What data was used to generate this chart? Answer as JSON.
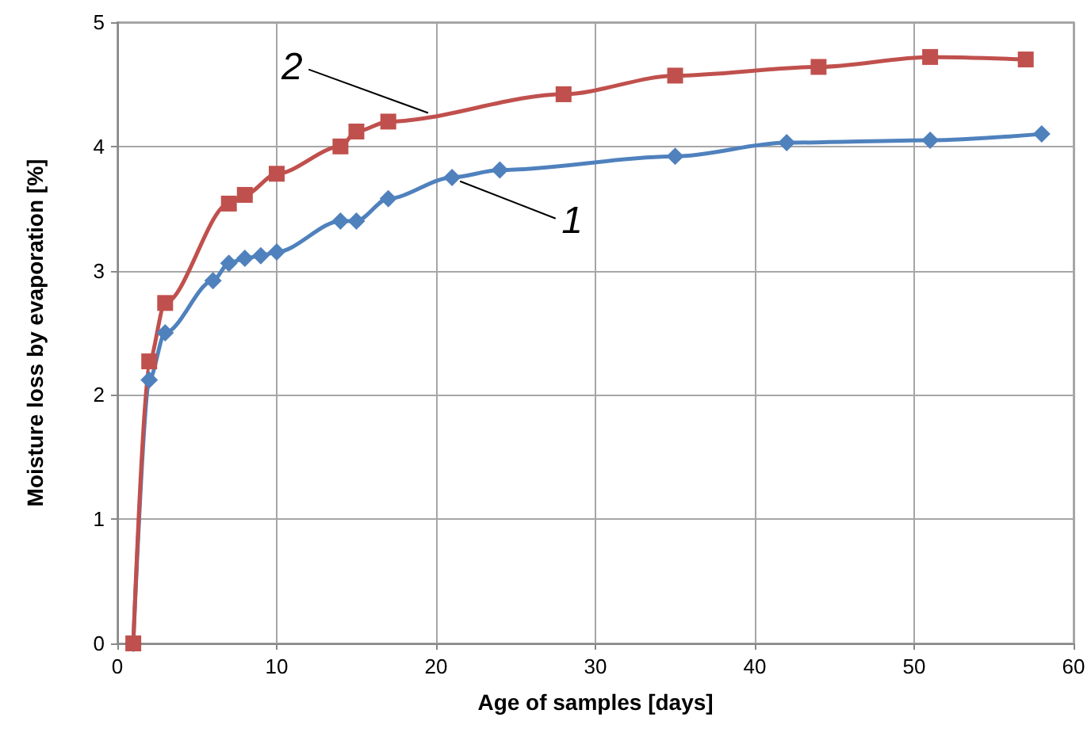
{
  "chart_data": {
    "type": "line",
    "xlabel": "Age of samples [days]",
    "ylabel": "Moisture loss by evaporation [%]",
    "xlim": [
      0,
      60
    ],
    "xticks": [
      0,
      10,
      20,
      30,
      40,
      50,
      60
    ],
    "ylim": [
      0,
      5
    ],
    "yticks": [
      0,
      1,
      2,
      3,
      4,
      5
    ],
    "grid": true,
    "legend": false,
    "line_style": "solid",
    "series": [
      {
        "name": "1",
        "color": "#4f81bd",
        "marker": "diamond",
        "x": [
          1,
          2,
          3,
          6,
          7,
          8,
          9,
          10,
          14,
          15,
          17,
          21,
          24,
          35,
          42,
          51,
          58
        ],
        "values": [
          0,
          2.12,
          2.5,
          2.92,
          3.06,
          3.1,
          3.12,
          3.15,
          3.4,
          3.4,
          3.58,
          3.75,
          3.81,
          3.92,
          4.03,
          4.05,
          4.1
        ]
      },
      {
        "name": "2",
        "color": "#c0504d",
        "marker": "square",
        "x": [
          1,
          2,
          3,
          7,
          8,
          10,
          14,
          15,
          17,
          28,
          35,
          44,
          51,
          57
        ],
        "values": [
          0,
          2.27,
          2.74,
          3.54,
          3.61,
          3.78,
          4.0,
          4.12,
          4.2,
          4.42,
          4.57,
          4.64,
          4.72,
          4.7
        ]
      }
    ]
  }
}
